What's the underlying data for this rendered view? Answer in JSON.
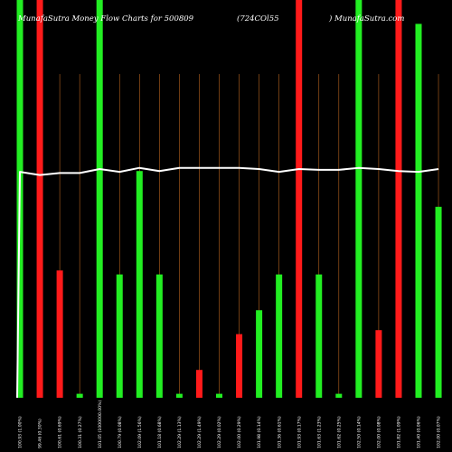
{
  "header": {
    "left": "MunafaSutra  Money Flow  Charts for 500809",
    "middle": "(724COl55",
    "right": ") MunafaSutra.com"
  },
  "chart_data": {
    "type": "bar",
    "ylim": [
      0,
      100
    ],
    "grid": true,
    "categories": [
      "100.93 (1.00%)",
      "99.46 (0.30%)",
      "100.61 (0.69%)",
      "100.31 (0.27%)",
      "101.05 (1000000.00%)",
      "100.79 (0.08%)",
      "102.09 (1.56%)",
      "101.18 (0.68%)",
      "102.29 (1.13%)",
      "102.29 (1.49%)",
      "102.29 (0.02%)",
      "102.00 (0.29%)",
      "101.98 (0.14%)",
      "101.36 (0.61%)",
      "101.93 (0.17%)",
      "101.63 (1.23%)",
      "101.62 (0.25%)",
      "102.50 (0.14%)",
      "102.00 (0.08%)",
      "101.82 (1.09%)",
      "101.40 (0.06%)",
      "102.00 (0.07%)"
    ],
    "series": [
      {
        "values": [
          100,
          100,
          32,
          1,
          100,
          31,
          57,
          31,
          1,
          7,
          1,
          16,
          22,
          31,
          100,
          31,
          1,
          100,
          17,
          100,
          94,
          48
        ],
        "colors": [
          "#22ee22",
          "#ff1a1a",
          "#ff1a1a",
          "#22ee22",
          "#22ee22",
          "#22ee22",
          "#22ee22",
          "#22ee22",
          "#22ee22",
          "#ff1a1a",
          "#22ee22",
          "#ff1a1a",
          "#22ee22",
          "#22ee22",
          "#ff1a1a",
          "#22ee22",
          "#22ee22",
          "#22ee22",
          "#ff1a1a",
          "#ff1a1a",
          "#22ee22",
          "#22ee22"
        ]
      }
    ],
    "line": {
      "color": "#ffffff",
      "start_value": 0,
      "values": [
        56.8,
        56.0,
        56.5,
        56.5,
        57.5,
        56.8,
        57.8,
        57.0,
        57.8,
        57.8,
        57.8,
        57.8,
        57.5,
        56.8,
        57.5,
        57.3,
        57.3,
        57.8,
        57.5,
        57.0,
        56.8,
        57.5
      ]
    },
    "grid_color": "#b8641e",
    "background": "#000000"
  }
}
